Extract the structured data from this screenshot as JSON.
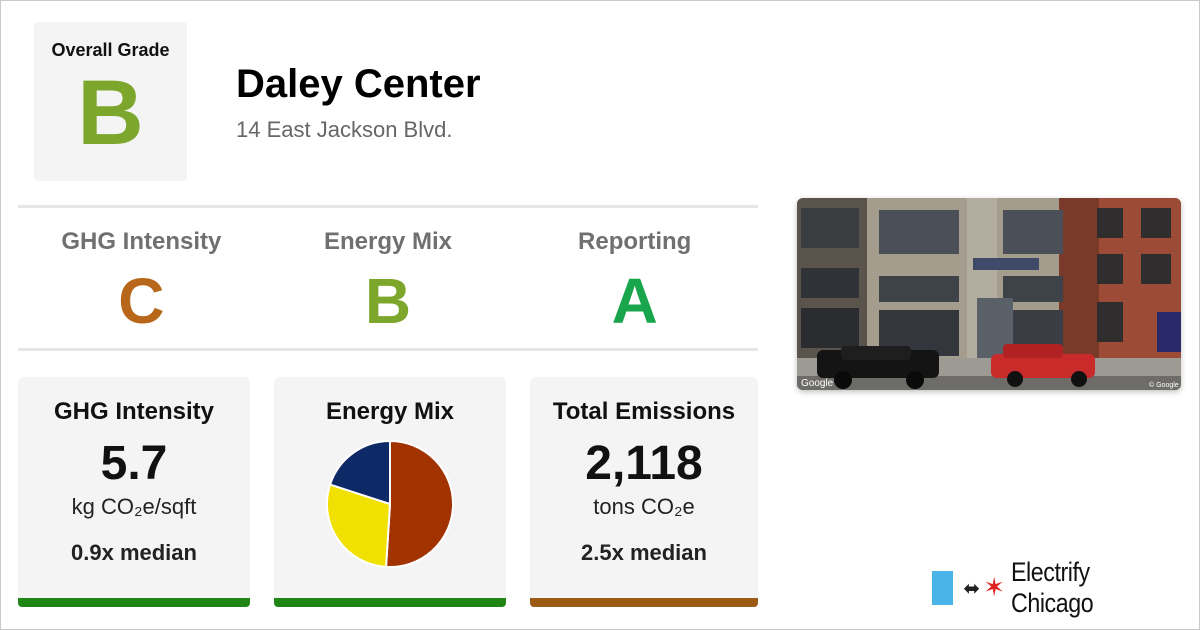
{
  "building": {
    "name": "Daley Center",
    "address": "14 East Jackson Blvd."
  },
  "overall": {
    "label": "Overall Grade",
    "grade": "B",
    "color": "#7ca72c"
  },
  "grades": [
    {
      "label": "GHG Intensity",
      "grade": "C",
      "color": "#b8671a"
    },
    {
      "label": "Energy Mix",
      "grade": "B",
      "color": "#7ca72c"
    },
    {
      "label": "Reporting",
      "grade": "A",
      "color": "#18a54c"
    }
  ],
  "cards": {
    "ghg": {
      "title": "GHG Intensity",
      "value": "5.7",
      "unit": "kg CO₂e/sqft",
      "median": "0.9x median",
      "bar_color": "#1f8616"
    },
    "mix": {
      "title": "Energy Mix",
      "bar_color": "#1f8616"
    },
    "emissions": {
      "title": "Total Emissions",
      "value": "2,118",
      "unit": "tons CO₂e",
      "median": "2.5x median",
      "bar_color": "#9b5b12"
    }
  },
  "chart_data": {
    "type": "pie",
    "values": [
      51,
      29,
      20
    ],
    "colors": [
      "#a23300",
      "#f0e100",
      "#0e2a66"
    ]
  },
  "photo": {
    "watermark_left": "Google",
    "watermark_right": "© Google"
  },
  "logo": {
    "brand": "Electrify Chicago",
    "flag_color": "#4ab4e8",
    "star_icon": "red-six-point-star-icon",
    "plug_icon": "plug-icon"
  }
}
